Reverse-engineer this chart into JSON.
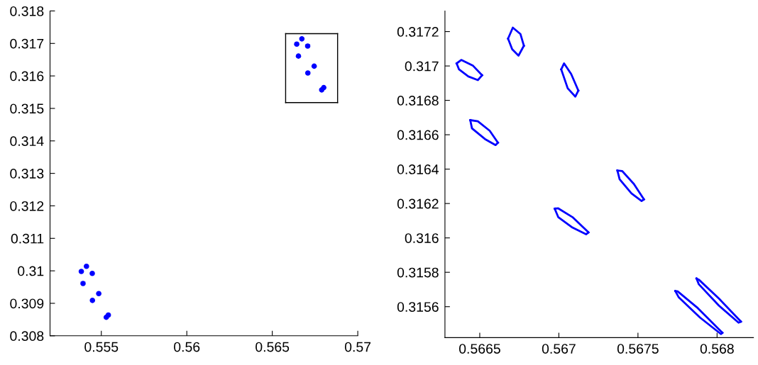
{
  "chart_data": [
    {
      "type": "line",
      "xlim": [
        0.552,
        0.57
      ],
      "ylim": [
        0.308,
        0.318
      ],
      "xticks": [
        0.555,
        0.56,
        0.565,
        0.57
      ],
      "yticks": [
        0.308,
        0.309,
        0.31,
        0.311,
        0.312,
        0.313,
        0.314,
        0.315,
        0.316,
        0.317,
        0.318
      ],
      "series": [
        {
          "color": "#000000",
          "x": [
            0.56578,
            0.56882
          ],
          "values": [
            0.3173,
            0.3173
          ]
        },
        {
          "color": "#000000",
          "x": [
            0.56578,
            0.56882
          ],
          "values": [
            0.31518,
            0.31518
          ]
        },
        {
          "color": "#000000",
          "x": [
            0.56578,
            0.56578
          ],
          "values": [
            0.31518,
            0.3173
          ]
        },
        {
          "color": "#000000",
          "x": [
            0.56882,
            0.56882
          ],
          "values": [
            0.31518,
            0.3173
          ]
        },
        {
          "type": "scatter",
          "marker": "circle",
          "color": "#0000ff",
          "x": [
            0.56643,
            0.56673,
            0.56707,
            0.56653,
            0.56745,
            0.56708,
            0.56789,
            0.56801,
            0.55383,
            0.55413,
            0.55447,
            0.55393,
            0.55485,
            0.55448,
            0.55529,
            0.55541
          ],
          "values": [
            0.31698,
            0.31714,
            0.31692,
            0.31661,
            0.3163,
            0.31609,
            0.31557,
            0.31564,
            0.30998,
            0.31014,
            0.30992,
            0.30961,
            0.3093,
            0.30909,
            0.30857,
            0.30864
          ]
        }
      ]
    },
    {
      "type": "line",
      "xlim": [
        0.56628,
        0.56823
      ],
      "ylim": [
        0.31542,
        0.31732
      ],
      "xticks": [
        0.5665,
        0.567,
        0.5675,
        0.568
      ],
      "yticks": [
        0.3156,
        0.3158,
        0.316,
        0.3162,
        0.3164,
        0.3166,
        0.3168,
        0.317,
        0.3172
      ],
      "series": [
        {
          "color": "#0000ff",
          "x": [
            0.566354,
            0.566383,
            0.566458,
            0.566515
          ],
          "values": [
            0.317015,
            0.317035,
            0.317001,
            0.316946
          ]
        },
        {
          "color": "#0000ff",
          "x": [
            0.566354,
            0.566369,
            0.566428,
            0.566488,
            0.566515
          ],
          "values": [
            0.317015,
            0.31698,
            0.316939,
            0.316918,
            0.316946
          ]
        },
        {
          "color": "#0000ff",
          "x": [
            0.566679,
            0.566709,
            0.566757,
            0.566779
          ],
          "values": [
            0.317159,
            0.317223,
            0.317186,
            0.317118
          ]
        },
        {
          "color": "#0000ff",
          "x": [
            0.566679,
            0.566705,
            0.566745,
            0.566779
          ],
          "values": [
            0.317159,
            0.317097,
            0.31706,
            0.317118
          ]
        },
        {
          "color": "#0000ff",
          "x": [
            0.567015,
            0.567033,
            0.567078,
            0.567123
          ],
          "values": [
            0.31698,
            0.317015,
            0.316953,
            0.316857
          ]
        },
        {
          "color": "#0000ff",
          "x": [
            0.567015,
            0.567056,
            0.567104,
            0.567123
          ],
          "values": [
            0.31698,
            0.31687,
            0.316822,
            0.316857
          ]
        },
        {
          "color": "#0000ff",
          "x": [
            0.56644,
            0.566488,
            0.566563,
            0.566615
          ],
          "values": [
            0.316685,
            0.316678,
            0.316623,
            0.316554
          ]
        },
        {
          "color": "#0000ff",
          "x": [
            0.56644,
            0.566451,
            0.566533,
            0.5666,
            0.566615
          ],
          "values": [
            0.316685,
            0.316637,
            0.316575,
            0.31654,
            0.316554
          ]
        },
        {
          "color": "#0000ff",
          "x": [
            0.56737,
            0.5674,
            0.567474,
            0.567538
          ],
          "values": [
            0.316392,
            0.316389,
            0.316314,
            0.316224
          ]
        },
        {
          "color": "#0000ff",
          "x": [
            0.56737,
            0.567384,
            0.567459,
            0.567523,
            0.567538
          ],
          "values": [
            0.316392,
            0.316341,
            0.316259,
            0.316215,
            0.316224
          ]
        },
        {
          "color": "#0000ff",
          "x": [
            0.566974,
            0.566996,
            0.567086,
            0.567187
          ],
          "values": [
            0.31617,
            0.316172,
            0.316121,
            0.316032
          ]
        },
        {
          "color": "#0000ff",
          "x": [
            0.566974,
            0.566996,
            0.567086,
            0.567172,
            0.567187
          ],
          "values": [
            0.31617,
            0.316121,
            0.31606,
            0.316021,
            0.316032
          ]
        },
        {
          "color": "#0000ff",
          "x": [
            0.567736,
            0.567751,
            0.567878,
            0.568034
          ],
          "values": [
            0.315691,
            0.315689,
            0.315592,
            0.315448
          ]
        },
        {
          "color": "#0000ff",
          "x": [
            0.567736,
            0.567758,
            0.567892,
            0.568024,
            0.568034
          ],
          "values": [
            0.315691,
            0.315654,
            0.315537,
            0.315441,
            0.315448
          ]
        },
        {
          "color": "#0000ff",
          "x": [
            0.56787,
            0.567885,
            0.568012,
            0.568151
          ],
          "values": [
            0.315764,
            0.315757,
            0.315647,
            0.315513
          ]
        },
        {
          "color": "#0000ff",
          "x": [
            0.56787,
            0.567885,
            0.568012,
            0.568136,
            0.568151
          ],
          "values": [
            0.315764,
            0.31573,
            0.315606,
            0.315507,
            0.315513
          ]
        }
      ]
    }
  ]
}
